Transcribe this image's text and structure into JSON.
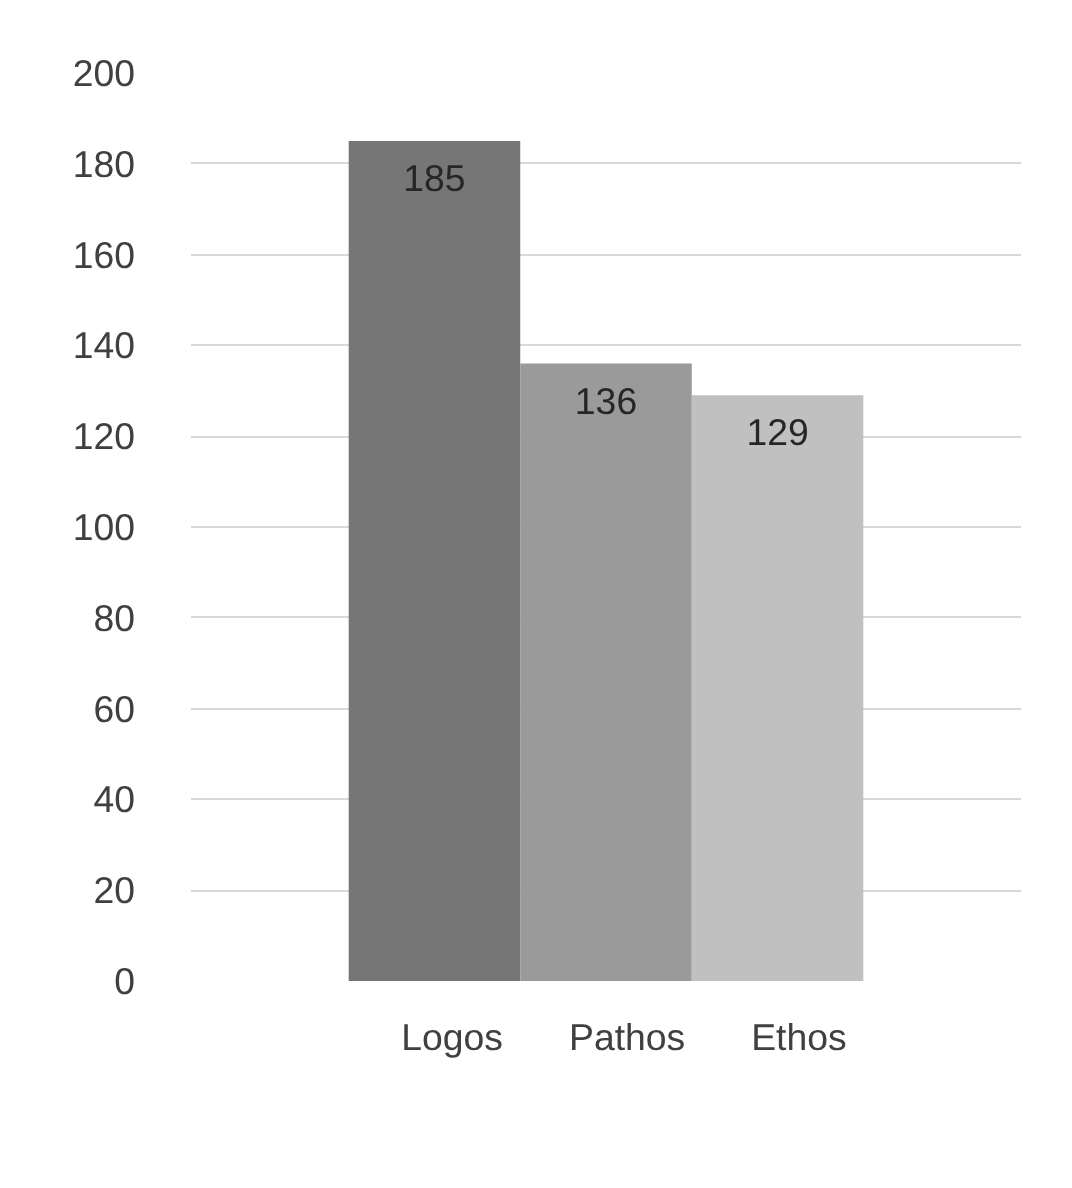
{
  "chart_data": {
    "type": "bar",
    "categories": [
      null
    ],
    "series": [
      {
        "name": "Logos",
        "color": "#767676",
        "values": [
          185
        ]
      },
      {
        "name": "Pathos",
        "color": "#9a9a9a",
        "values": [
          136
        ]
      },
      {
        "name": "Ethos",
        "color": "#c0c0c0",
        "values": [
          129
        ]
      }
    ],
    "ylim": [
      0,
      200
    ],
    "yticks": [
      0,
      20,
      40,
      60,
      80,
      100,
      120,
      140,
      160,
      180,
      200
    ],
    "grid": "y",
    "legend": "bottom",
    "data_labels": true
  }
}
